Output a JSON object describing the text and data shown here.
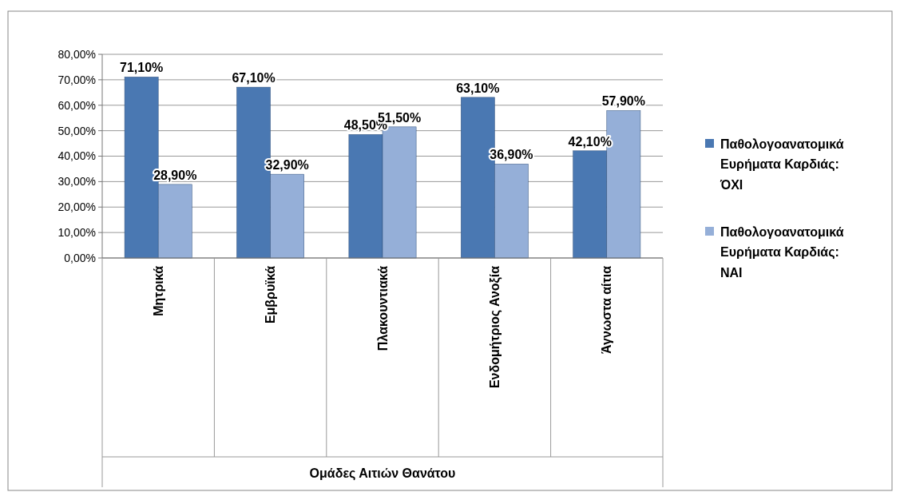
{
  "chart_data": {
    "type": "bar",
    "annotations": [
      "Ομάδες Αιτιών Θανάτου"
    ],
    "categories": [
      "Μητρικά",
      "Εμβρυϊκά",
      "Πλακουντιακά",
      "Ενδομήτριος Ανοξία",
      "Άγνωστα αίτια"
    ],
    "series": [
      {
        "name": "Παθολογοανατομικά Ευρήματα Καρδιάς: ΌΧΙ",
        "color": "#4a78b2",
        "values": [
          71.1,
          67.1,
          48.5,
          63.1,
          42.1
        ],
        "value_labels": [
          "71,10%",
          "67,10%",
          "48,50%",
          "63,10%",
          "42,10%"
        ]
      },
      {
        "name": "Παθολογοανατομικά Ευρήματα Καρδιάς: ΝΑΙ",
        "color": "#95afd8",
        "values": [
          28.9,
          32.9,
          51.5,
          36.9,
          57.9
        ],
        "value_labels": [
          "28,90%",
          "32,90%",
          "51,50%",
          "36,90%",
          "57,90%"
        ]
      }
    ],
    "ylim": [
      0,
      80
    ],
    "yticks": [
      {
        "value": 0,
        "label": "0,00%"
      },
      {
        "value": 10,
        "label": "10,00%"
      },
      {
        "value": 20,
        "label": "20,00%"
      },
      {
        "value": 30,
        "label": "30,00%"
      },
      {
        "value": 40,
        "label": "40,00%"
      },
      {
        "value": 50,
        "label": "50,00%"
      },
      {
        "value": 60,
        "label": "60,00%"
      },
      {
        "value": 70,
        "label": "70,00%"
      },
      {
        "value": 80,
        "label": "80,00%"
      }
    ],
    "grid": "y",
    "legend": "right"
  }
}
